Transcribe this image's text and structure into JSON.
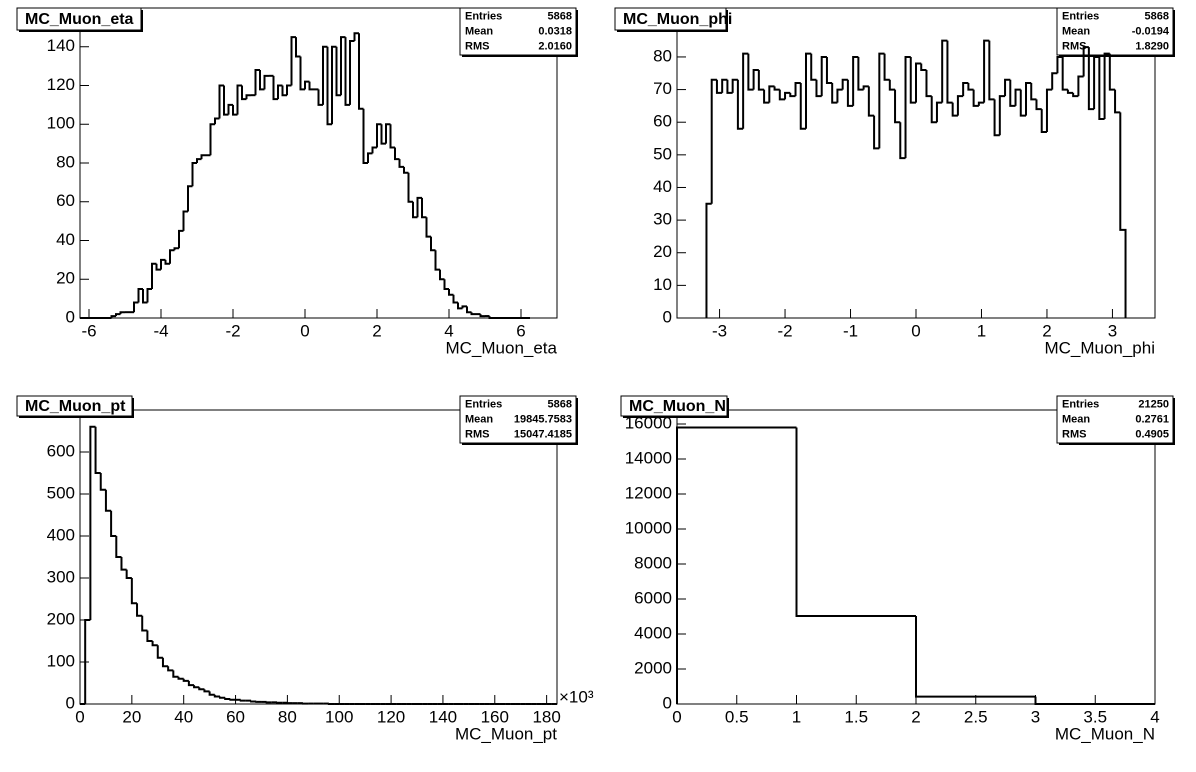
{
  "chart_data": [
    {
      "type": "histogram",
      "title": "MC_Muon_eta",
      "x_label": "MC_Muon_eta",
      "color": "#000000",
      "stats": {
        "labels": [
          "Entries",
          "Mean",
          "RMS"
        ],
        "values": [
          "5868",
          "0.0318",
          "2.0160"
        ]
      },
      "xlim": [
        -6.25,
        7.0
      ],
      "ylim": [
        0,
        160
      ],
      "xticks": [
        -6,
        -4,
        -2,
        0,
        2,
        4,
        6
      ],
      "yticks": [
        0,
        20,
        40,
        60,
        80,
        100,
        120,
        140
      ],
      "bins": [
        -6.25,
        -6.125,
        -6,
        -5.875,
        -5.75,
        -5.625,
        -5.5,
        -5.375,
        -5.25,
        -5.125,
        -5,
        -4.875,
        -4.75,
        -4.625,
        -4.5,
        -4.375,
        -4.25,
        -4.125,
        -4,
        -3.875,
        -3.75,
        -3.625,
        -3.5,
        -3.375,
        -3.25,
        -3.125,
        -3,
        -2.875,
        -2.75,
        -2.625,
        -2.5,
        -2.375,
        -2.25,
        -2.125,
        -2,
        -1.875,
        -1.75,
        -1.625,
        -1.5,
        -1.375,
        -1.25,
        -1.125,
        -1,
        -0.875,
        -0.75,
        -0.625,
        -0.5,
        -0.375,
        -0.25,
        -0.125,
        0,
        0.125,
        0.25,
        0.375,
        0.5,
        0.625,
        0.75,
        0.875,
        1,
        1.125,
        1.25,
        1.375,
        1.5,
        1.625,
        1.75,
        1.875,
        2,
        2.125,
        2.25,
        2.375,
        2.5,
        2.625,
        2.75,
        2.875,
        3,
        3.125,
        3.25,
        3.375,
        3.5,
        3.625,
        3.75,
        3.875,
        4,
        4.125,
        4.25,
        4.375,
        4.5,
        4.625,
        4.75,
        4.875,
        5,
        5.125,
        5.25,
        5.375,
        5.5,
        5.625,
        5.75,
        5.875,
        6,
        6.125,
        6.25
      ],
      "values": [
        0,
        0,
        0,
        0,
        0,
        0,
        0,
        1,
        2,
        3,
        3,
        3,
        8,
        15,
        8,
        15,
        28,
        25,
        30,
        28,
        35,
        36,
        45,
        55,
        68,
        80,
        82,
        84,
        84,
        100,
        103,
        120,
        105,
        110,
        105,
        120,
        113,
        115,
        115,
        128,
        118,
        125,
        125,
        113,
        120,
        115,
        120,
        145,
        135,
        118,
        122,
        118,
        118,
        110,
        140,
        100,
        140,
        115,
        145,
        110,
        143,
        147,
        108,
        80,
        85,
        88,
        100,
        90,
        100,
        88,
        82,
        78,
        75,
        60,
        52,
        62,
        52,
        42,
        35,
        25,
        20,
        15,
        12,
        8,
        5,
        6,
        3,
        2,
        2,
        1,
        1,
        0,
        0,
        0,
        0,
        0,
        0,
        0,
        0,
        0
      ]
    },
    {
      "type": "histogram",
      "title": "MC_Muon_phi",
      "x_label": "MC_Muon_phi",
      "color": "#000000",
      "stats": {
        "labels": [
          "Entries",
          "Mean",
          "RMS"
        ],
        "values": [
          "5868",
          "-0.0194",
          "1.8290"
        ]
      },
      "xlim": [
        -3.65,
        3.65
      ],
      "ylim": [
        0,
        95
      ],
      "xticks": [
        -3,
        -2,
        -1,
        0,
        1,
        2,
        3
      ],
      "yticks": [
        0,
        10,
        20,
        30,
        40,
        50,
        60,
        70,
        80
      ],
      "bins": [
        -3.2,
        -3.12,
        -3.04,
        -2.96,
        -2.88,
        -2.8,
        -2.72,
        -2.64,
        -2.56,
        -2.48,
        -2.4,
        -2.32,
        -2.24,
        -2.16,
        -2.08,
        -2,
        -1.92,
        -1.84,
        -1.76,
        -1.68,
        -1.6,
        -1.52,
        -1.44,
        -1.36,
        -1.28,
        -1.2,
        -1.12,
        -1.04,
        -0.96,
        -0.88,
        -0.8,
        -0.72,
        -0.64,
        -0.56,
        -0.48,
        -0.4,
        -0.32,
        -0.24,
        -0.16,
        -0.08,
        0,
        0.08,
        0.16,
        0.24,
        0.32,
        0.4,
        0.48,
        0.56,
        0.64,
        0.72,
        0.8,
        0.88,
        0.96,
        1.04,
        1.12,
        1.2,
        1.28,
        1.36,
        1.44,
        1.52,
        1.6,
        1.68,
        1.76,
        1.84,
        1.92,
        2,
        2.08,
        2.16,
        2.24,
        2.32,
        2.4,
        2.48,
        2.56,
        2.64,
        2.72,
        2.8,
        2.88,
        2.96,
        3.04,
        3.12,
        3.2
      ],
      "values": [
        35,
        73,
        69,
        73,
        69,
        73,
        58,
        81,
        70,
        76,
        70,
        66,
        71,
        70,
        67,
        69,
        68,
        72,
        58,
        81,
        73,
        68,
        80,
        72,
        66,
        70,
        73,
        65,
        80,
        70,
        71,
        62,
        52,
        81,
        73,
        70,
        60,
        49,
        80,
        66,
        78,
        76,
        68,
        60,
        66,
        85,
        66,
        62,
        68,
        72,
        70,
        65,
        66,
        85,
        67,
        56,
        68,
        73,
        65,
        70,
        62,
        72,
        67,
        64,
        57,
        70,
        75,
        80,
        70,
        69,
        68,
        74,
        83,
        64,
        80,
        61,
        81,
        70,
        63,
        27
      ]
    },
    {
      "type": "histogram",
      "title": "MC_Muon_pt",
      "x_label": "MC_Muon_pt",
      "x_multiplier": "×10³",
      "color": "#000000",
      "stats": {
        "labels": [
          "Entries",
          "Mean",
          "RMS"
        ],
        "values": [
          "5868",
          "19845.7583",
          "15047.4185"
        ]
      },
      "xlim": [
        0,
        184
      ],
      "ylim": [
        0,
        700
      ],
      "xticks": [
        0,
        20,
        40,
        60,
        80,
        100,
        120,
        140,
        160,
        180
      ],
      "yticks": [
        0,
        100,
        200,
        300,
        400,
        500,
        600
      ],
      "bins": [
        0,
        2,
        4,
        6,
        8,
        10,
        12,
        14,
        16,
        18,
        20,
        22,
        24,
        26,
        28,
        30,
        32,
        34,
        36,
        38,
        40,
        42,
        44,
        46,
        48,
        50,
        52,
        54,
        56,
        58,
        60,
        62,
        64,
        66,
        68,
        70,
        72,
        74,
        76,
        78,
        80,
        82,
        84,
        86,
        88,
        90,
        92,
        94,
        96,
        98,
        100,
        102,
        104,
        106,
        108,
        110,
        112,
        114,
        116,
        118,
        120,
        122,
        124,
        126,
        128,
        130,
        132,
        134,
        136,
        138,
        140,
        142,
        144,
        146,
        148,
        150,
        152,
        154,
        156,
        158,
        160,
        162,
        164,
        166,
        168,
        170,
        172,
        174,
        176,
        178,
        180,
        182,
        184
      ],
      "values": [
        0,
        200,
        660,
        550,
        510,
        460,
        400,
        350,
        320,
        300,
        240,
        210,
        175,
        150,
        140,
        110,
        90,
        80,
        65,
        60,
        55,
        45,
        40,
        35,
        30,
        22,
        18,
        15,
        12,
        10,
        10,
        8,
        8,
        6,
        5,
        5,
        4,
        4,
        3,
        3,
        2,
        2,
        2,
        1,
        1,
        1,
        1,
        1,
        0,
        0,
        0,
        0,
        0,
        0,
        0,
        0,
        0,
        0,
        0,
        0,
        0,
        0,
        0,
        0,
        0,
        0,
        0,
        0,
        0,
        0,
        0,
        0,
        0,
        0,
        0,
        0,
        0,
        0,
        0,
        0,
        0,
        0,
        0,
        0,
        0,
        0,
        0,
        0,
        0,
        0,
        0,
        0
      ]
    },
    {
      "type": "histogram",
      "title": "MC_Muon_N",
      "x_label": "MC_Muon_N",
      "color": "#000000",
      "stats": {
        "labels": [
          "Entries",
          "Mean",
          "RMS"
        ],
        "values": [
          "21250",
          "0.2761",
          "0.4905"
        ]
      },
      "xlim": [
        0,
        4
      ],
      "ylim": [
        0,
        16800
      ],
      "xticks": [
        0,
        0.5,
        1,
        1.5,
        2,
        2.5,
        3,
        3.5,
        4
      ],
      "yticks": [
        0,
        2000,
        4000,
        6000,
        8000,
        10000,
        12000,
        14000,
        16000
      ],
      "bins": [
        0,
        1,
        2,
        3,
        4
      ],
      "values": [
        15800,
        5030,
        420,
        0
      ]
    }
  ]
}
